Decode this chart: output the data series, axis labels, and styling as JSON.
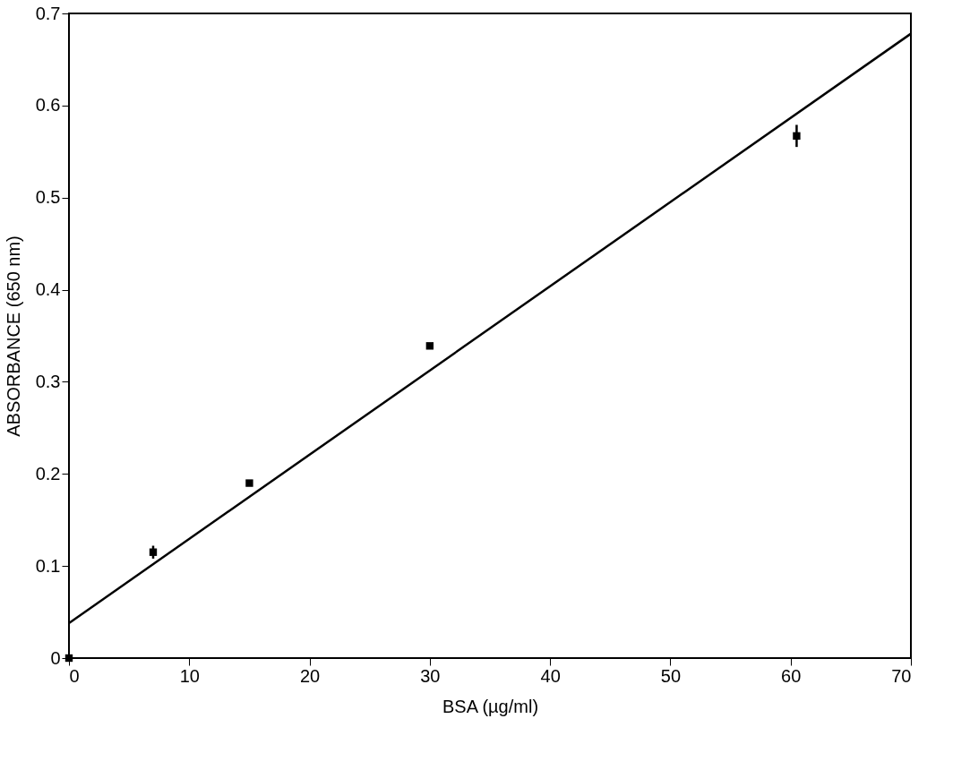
{
  "chart_data": {
    "type": "scatter",
    "xlabel": "BSA (µg/ml)",
    "ylabel": "ABSORBANCE (650 nm)",
    "xlim": [
      0,
      70
    ],
    "ylim": [
      0,
      0.7
    ],
    "xticks": [
      0,
      10,
      20,
      30,
      40,
      50,
      60,
      70
    ],
    "yticks": [
      {
        "value": 0,
        "label": "0"
      },
      0.1,
      0.2,
      0.3,
      0.4,
      0.5,
      0.6,
      0.7
    ],
    "grid": false,
    "series": [
      {
        "color": "#000000",
        "marker": "square",
        "x": [
          0,
          7,
          15,
          30,
          60.5
        ],
        "values": [
          0,
          0.115,
          0.19,
          0.339,
          0.567
        ],
        "errors": [
          null,
          0.007,
          null,
          null,
          0.012
        ]
      },
      {
        "type": "line",
        "color": "#000000",
        "x": [
          0,
          70
        ],
        "values": [
          0.038,
          0.678
        ],
        "line_style": "solid",
        "marker": "none"
      }
    ]
  }
}
